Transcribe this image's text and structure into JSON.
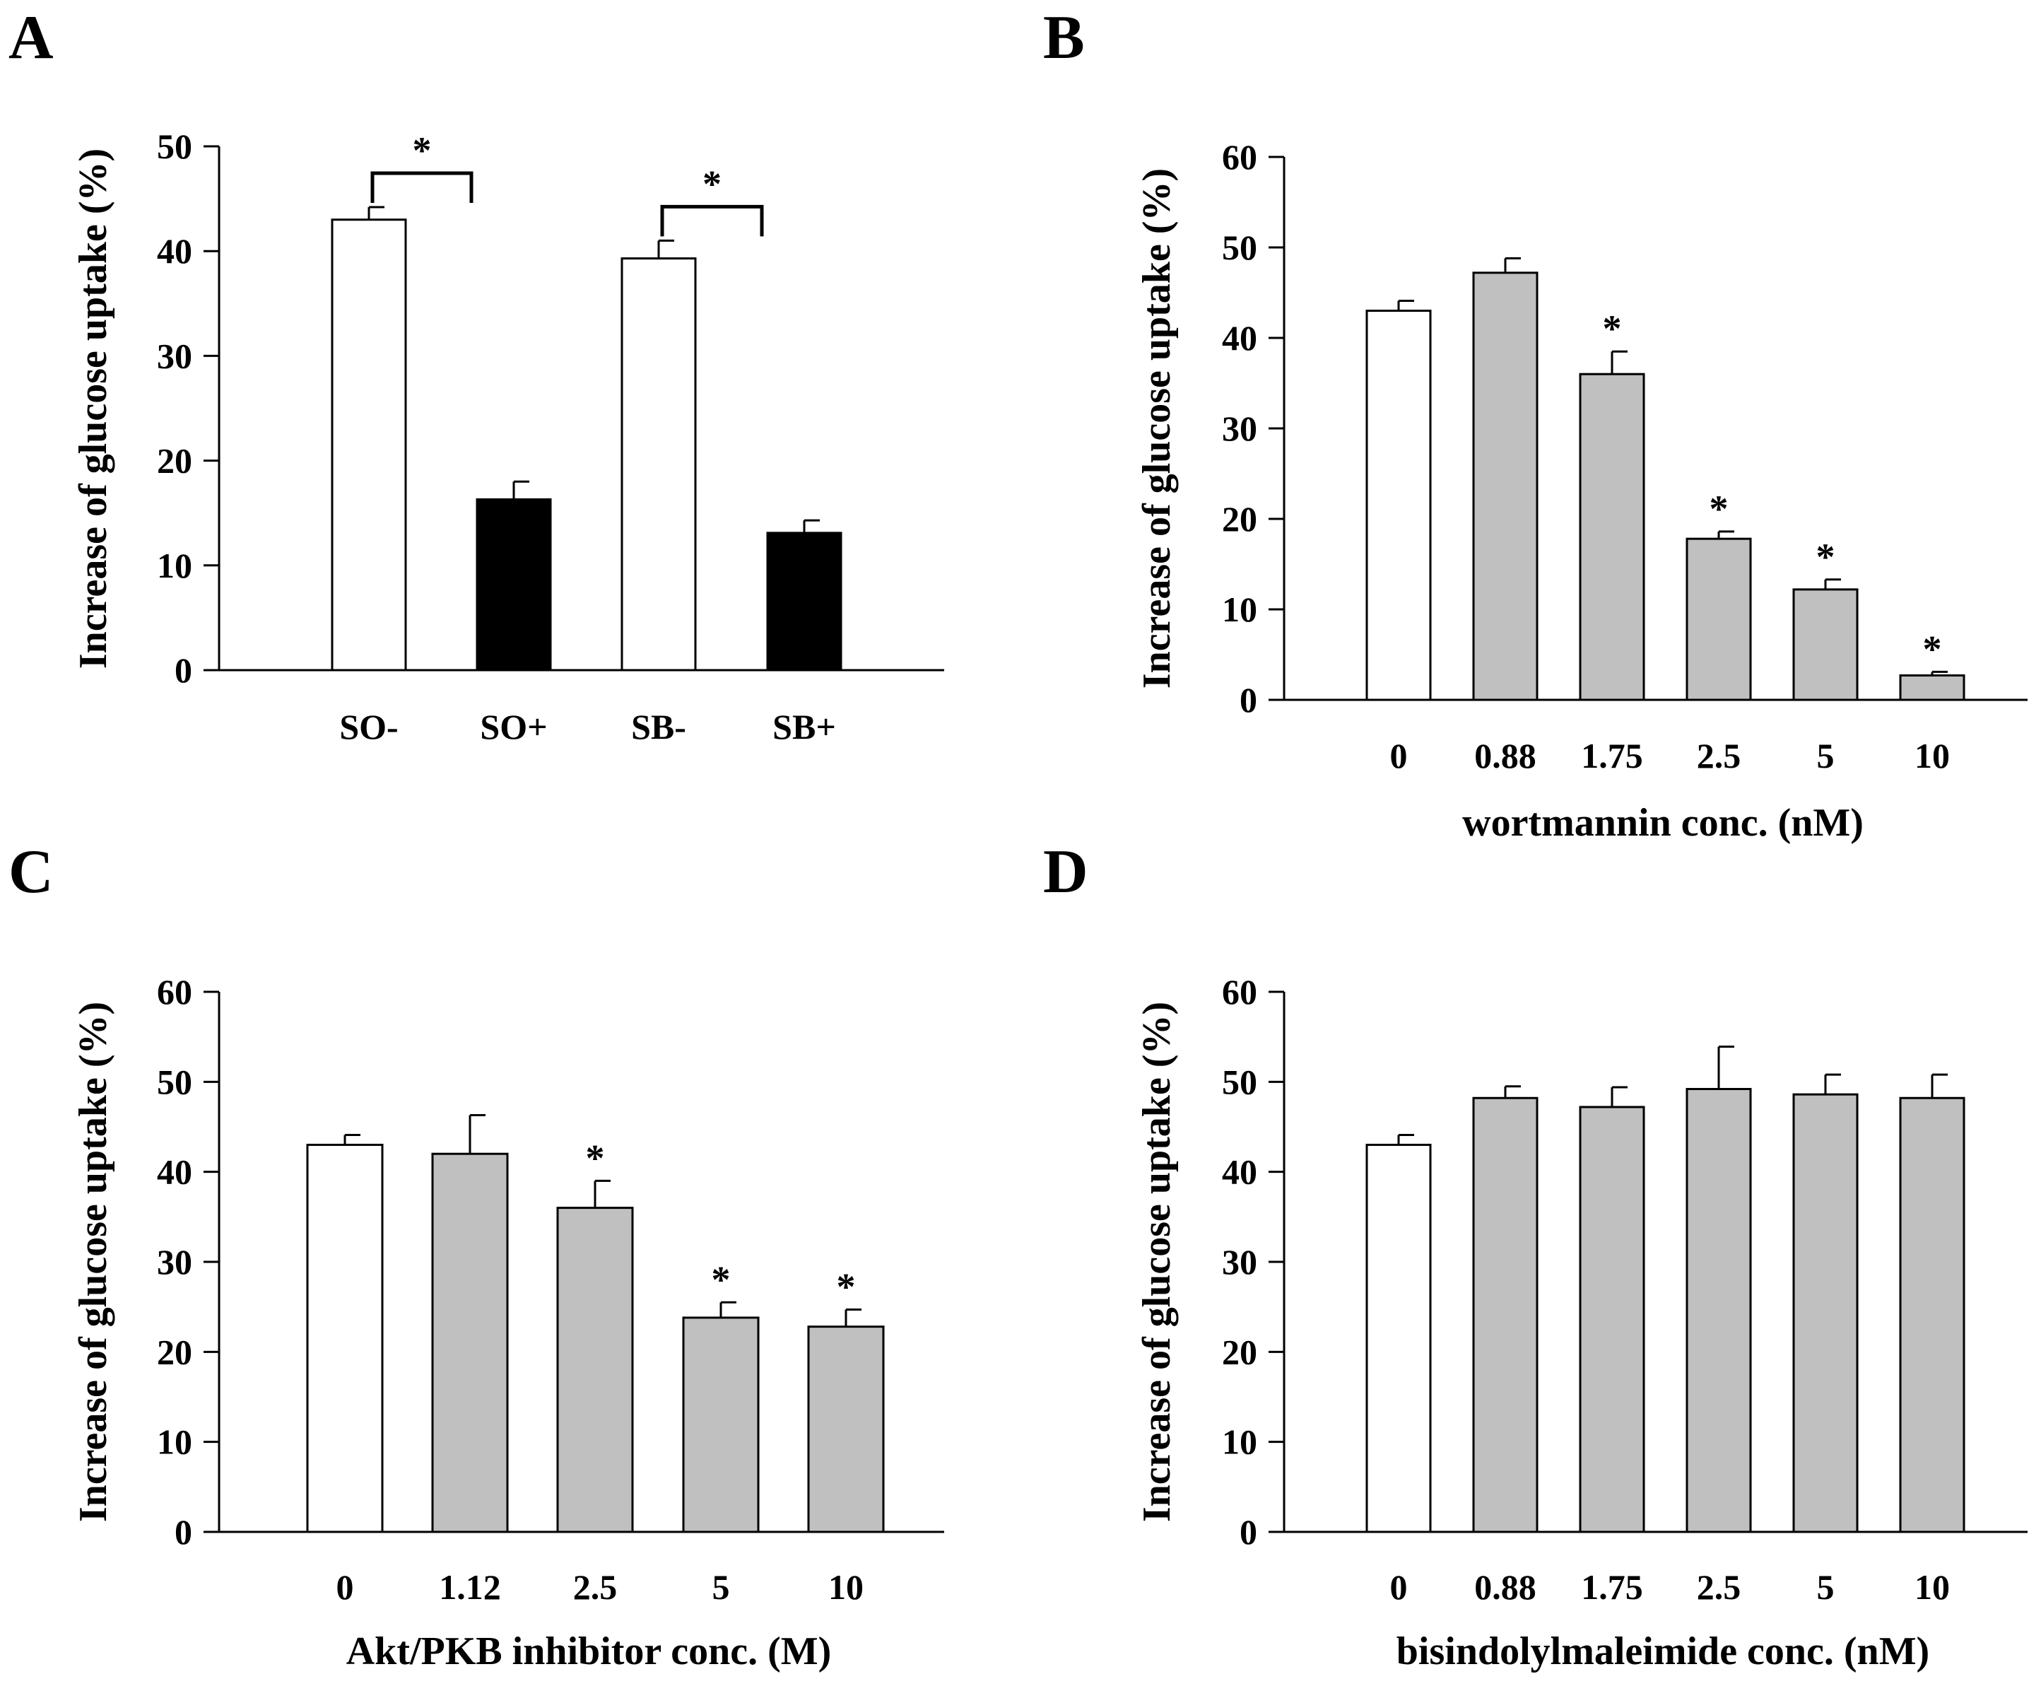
{
  "chart_data": [
    {
      "panel": "A",
      "type": "bar",
      "ylabel": "Increase of glucose uptake (%)",
      "xlabel": "",
      "ylim": [
        0,
        50
      ],
      "yticks": [
        "0",
        "10",
        "20",
        "30",
        "40",
        "50"
      ],
      "categories": [
        "SO-",
        "SO+",
        "SB-",
        "SB+"
      ],
      "values": [
        43,
        16.3,
        39.3,
        13.1
      ],
      "errors": [
        1.2,
        1.7,
        1.7,
        1.2
      ],
      "fills": [
        "white",
        "black",
        "white",
        "black"
      ],
      "brackets": [
        {
          "from": 0,
          "to": 1,
          "label": "*"
        },
        {
          "from": 2,
          "to": 3,
          "label": "*"
        }
      ]
    },
    {
      "panel": "B",
      "type": "bar",
      "ylabel": "Increase of glucose uptake (%)",
      "xlabel": "wortmannin conc. (nM)",
      "ylim": [
        0,
        60
      ],
      "yticks": [
        "0",
        "10",
        "20",
        "30",
        "40",
        "50",
        "60"
      ],
      "categories": [
        "0",
        "0.88",
        "1.75",
        "2.5",
        "5",
        "10"
      ],
      "values": [
        43,
        47.2,
        36,
        17.8,
        12.2,
        2.7
      ],
      "errors": [
        1.1,
        1.6,
        2.5,
        0.8,
        1.1,
        0.4
      ],
      "fills": [
        "white",
        "gray",
        "gray",
        "gray",
        "gray",
        "gray"
      ],
      "significance": [
        "",
        "",
        "*",
        "*",
        "*",
        "*"
      ]
    },
    {
      "panel": "C",
      "type": "bar",
      "ylabel": "Increase of glucose uptake (%)",
      "xlabel": "Akt/PKB inhibitor conc. (M)",
      "ylim": [
        0,
        60
      ],
      "yticks": [
        "0",
        "10",
        "20",
        "30",
        "40",
        "50",
        "60"
      ],
      "categories": [
        "0",
        "1.12",
        "2.5",
        "5",
        "10"
      ],
      "values": [
        43,
        42,
        36,
        23.8,
        22.8
      ],
      "errors": [
        1.1,
        4.3,
        3,
        1.7,
        1.9
      ],
      "fills": [
        "white",
        "gray",
        "gray",
        "gray",
        "gray"
      ],
      "significance": [
        "",
        "",
        "*",
        "*",
        "*"
      ]
    },
    {
      "panel": "D",
      "type": "bar",
      "ylabel": "Increase of glucose uptake (%)",
      "xlabel": "bisindolylmaleimide conc. (nM)",
      "ylim": [
        0,
        60
      ],
      "yticks": [
        "0",
        "10",
        "20",
        "30",
        "40",
        "50",
        "60"
      ],
      "categories": [
        "0",
        "0.88",
        "1.75",
        "2.5",
        "5",
        "10"
      ],
      "values": [
        43,
        48.2,
        47.2,
        49.2,
        48.6,
        48.2
      ],
      "errors": [
        1.1,
        1.3,
        2.2,
        4.7,
        2.2,
        2.6
      ],
      "fills": [
        "white",
        "gray",
        "gray",
        "gray",
        "gray",
        "gray"
      ],
      "significance": [
        "",
        "",
        "",
        "",
        "",
        ""
      ]
    }
  ],
  "colors": {
    "white": "#ffffff",
    "gray": "#c0c0c0",
    "black": "#000000",
    "axis": "#000000"
  }
}
